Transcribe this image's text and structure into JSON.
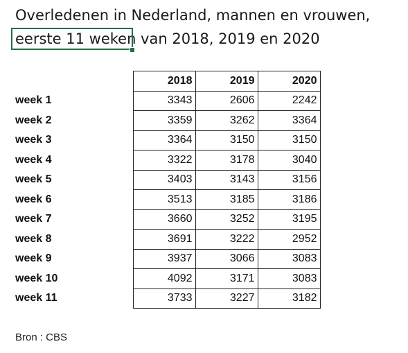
{
  "title": {
    "line1": "Overledenen in Nederland, mannen en vrouwen,",
    "line2": "eerste 11 weken van 2018, 2019 en 2020"
  },
  "source": "Bron : CBS",
  "chart_data": {
    "type": "table",
    "title": "Overledenen in Nederland, mannen en vrouwen, eerste 11 weken van 2018, 2019 en 2020",
    "columns": [
      "2018",
      "2019",
      "2020"
    ],
    "rows": [
      {
        "label": "week 1",
        "values": [
          "3343",
          "2606",
          "2242"
        ]
      },
      {
        "label": "week 2",
        "values": [
          "3359",
          "3262",
          "3364"
        ]
      },
      {
        "label": "week 3",
        "values": [
          "3364",
          "3150",
          "3150"
        ]
      },
      {
        "label": "week 4",
        "values": [
          "3322",
          "3178",
          "3040"
        ]
      },
      {
        "label": "week 5",
        "values": [
          "3403",
          "3143",
          "3156"
        ]
      },
      {
        "label": "week 6",
        "values": [
          "3513",
          "3185",
          "3186"
        ]
      },
      {
        "label": "week 7",
        "values": [
          "3660",
          "3252",
          "3195"
        ]
      },
      {
        "label": "week 8",
        "values": [
          "3691",
          "3222",
          "2952"
        ]
      },
      {
        "label": "week 9",
        "values": [
          "3937",
          "3066",
          "3083"
        ]
      },
      {
        "label": "week 10",
        "values": [
          "4092",
          "3171",
          "3083"
        ]
      },
      {
        "label": "week 11",
        "values": [
          "3733",
          "3227",
          "3182"
        ]
      }
    ]
  }
}
